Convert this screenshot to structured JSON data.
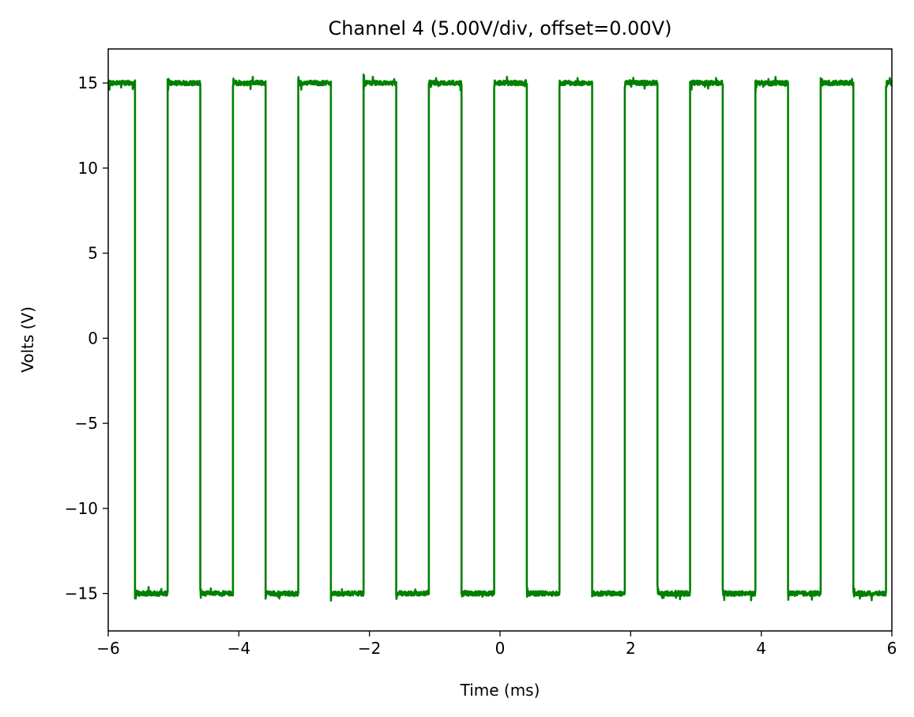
{
  "chart_data": {
    "type": "line",
    "title": "Channel 4 (5.00V/div, offset=0.00V)",
    "xlabel": "Time (ms)",
    "ylabel": "Volts (V)",
    "xlim": [
      -6,
      6
    ],
    "ylim": [
      -17.2,
      17
    ],
    "xticks": [
      -6,
      -4,
      -2,
      0,
      2,
      4,
      6
    ],
    "yticks": [
      -15,
      -10,
      -5,
      0,
      5,
      10,
      15
    ],
    "xtick_labels": [
      "−6",
      "−4",
      "−2",
      "0",
      "2",
      "4",
      "6"
    ],
    "ytick_labels": [
      "−15",
      "−10",
      "−5",
      "0",
      "5",
      "10",
      "15"
    ],
    "grid": false,
    "legend": "none",
    "colors": {
      "series": "#008000",
      "axes": "#000000",
      "background": "#ffffff"
    },
    "series": [
      {
        "color": "#008000",
        "waveform": "square",
        "high": 15,
        "low": -15,
        "period_ms": 1.0,
        "initial_level": "high",
        "transitions_ms": [
          -5.59,
          -5.09,
          -4.59,
          -4.09,
          -3.59,
          -3.09,
          -2.59,
          -2.09,
          -1.59,
          -1.09,
          -0.59,
          -0.09,
          0.41,
          0.91,
          1.41,
          1.91,
          2.41,
          2.91,
          3.41,
          3.91,
          4.41,
          4.91,
          5.41,
          5.91
        ]
      }
    ]
  }
}
